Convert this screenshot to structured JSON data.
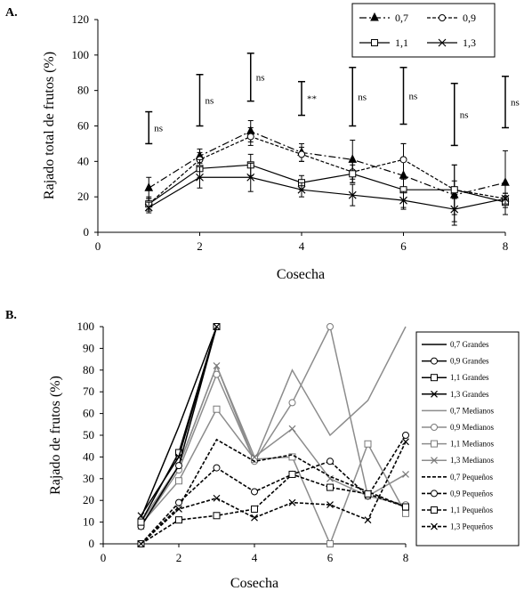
{
  "chart_data": [
    {
      "type": "line",
      "panel_label": "A.",
      "xlabel": "Cosecha",
      "ylabel": "Rajado total de frutos (%)",
      "xlim": [
        0,
        8
      ],
      "ylim": [
        0,
        120
      ],
      "x_ticks": [
        "0",
        "2",
        "4",
        "6",
        "8"
      ],
      "y_ticks": [
        "0",
        "20",
        "40",
        "60",
        "80",
        "100",
        "120"
      ],
      "legend_position": "top-right",
      "x": [
        1,
        2,
        3,
        4,
        5,
        6,
        7,
        8
      ],
      "series": [
        {
          "name": "0,7",
          "style": "dashdot",
          "marker": "triangle",
          "values": [
            25,
            43,
            57,
            45,
            41,
            32,
            21,
            28
          ],
          "err": [
            6,
            4,
            6,
            5,
            11,
            18,
            17,
            18
          ]
        },
        {
          "name": "0,9",
          "style": "dashed",
          "marker": "circle",
          "values": [
            16,
            41,
            54,
            44,
            34,
            41,
            24,
            19
          ],
          "err": [
            4,
            4,
            5,
            4,
            6,
            9,
            5,
            3
          ]
        },
        {
          "name": "1,1",
          "style": "solid",
          "marker": "square",
          "values": [
            16,
            36,
            38,
            28,
            33,
            24,
            24,
            17
          ],
          "err": [
            3,
            5,
            6,
            4,
            5,
            6,
            14,
            3
          ]
        },
        {
          "name": "1,3",
          "style": "solid",
          "marker": "x",
          "values": [
            14,
            31,
            31,
            24,
            21,
            18,
            13,
            19
          ],
          "err": [
            3,
            6,
            8,
            4,
            6,
            5,
            7,
            3
          ]
        }
      ],
      "significance": [
        {
          "x": 1,
          "low": 50,
          "high": 68,
          "label": "ns"
        },
        {
          "x": 2,
          "low": 60,
          "high": 89,
          "label": "ns"
        },
        {
          "x": 3,
          "low": 74,
          "high": 101,
          "label": "ns"
        },
        {
          "x": 4,
          "low": 66,
          "high": 85,
          "label": "**"
        },
        {
          "x": 5,
          "low": 60,
          "high": 93,
          "label": "ns"
        },
        {
          "x": 6,
          "low": 61,
          "high": 93,
          "label": "ns"
        },
        {
          "x": 7,
          "low": 49,
          "high": 84,
          "label": "ns"
        },
        {
          "x": 8,
          "low": 59,
          "high": 88,
          "label": "ns"
        }
      ]
    },
    {
      "type": "line",
      "panel_label": "B.",
      "xlabel": "Cosecha",
      "ylabel": "Rajado de frutos (%)",
      "xlim": [
        0,
        8
      ],
      "ylim": [
        0,
        100
      ],
      "x_ticks": [
        "0",
        "2",
        "4",
        "6",
        "8"
      ],
      "y_ticks": [
        "0",
        "10",
        "20",
        "30",
        "40",
        "50",
        "60",
        "70",
        "80",
        "90",
        "100"
      ],
      "legend_position": "right",
      "series": [
        {
          "name": "0,7 Grandes",
          "group": "grandes",
          "marker": "none",
          "x": [
            1,
            2,
            3
          ],
          "values": [
            12,
            54,
            100
          ]
        },
        {
          "name": "0,9 Grandes",
          "group": "grandes",
          "marker": "circle",
          "x": [
            1,
            2,
            3
          ],
          "values": [
            8,
            36,
            100
          ]
        },
        {
          "name": "1,1 Grandes",
          "group": "grandes",
          "marker": "square",
          "x": [
            1,
            2,
            3
          ],
          "values": [
            10,
            42,
            100
          ]
        },
        {
          "name": "1,3 Grandes",
          "group": "grandes",
          "marker": "x",
          "x": [
            1,
            2,
            3
          ],
          "values": [
            13,
            40,
            100
          ]
        },
        {
          "name": "0,7 Medianos",
          "group": "medianos",
          "marker": "none",
          "x": [
            1,
            2,
            3,
            4,
            5,
            6,
            7,
            8
          ],
          "values": [
            10,
            36,
            82,
            38,
            80,
            50,
            66,
            100
          ]
        },
        {
          "name": "0,9 Medianos",
          "group": "medianos",
          "marker": "circle",
          "x": [
            1,
            2,
            3,
            4,
            5,
            6,
            7,
            8
          ],
          "values": [
            8,
            34,
            78,
            38,
            65,
            100,
            22,
            18
          ]
        },
        {
          "name": "1,1 Medianos",
          "group": "medianos",
          "marker": "square",
          "x": [
            1,
            2,
            3,
            4,
            5,
            6,
            7,
            8
          ],
          "values": [
            9,
            29,
            62,
            39,
            40,
            0,
            46,
            14
          ]
        },
        {
          "name": "1,3 Medianos",
          "group": "medianos",
          "marker": "x",
          "x": [
            1,
            2,
            3,
            4,
            5,
            6,
            7,
            8
          ],
          "values": [
            8,
            36,
            82,
            40,
            53,
            30,
            22,
            32
          ]
        },
        {
          "name": "0,7 Pequeños",
          "group": "pequenos",
          "marker": "none",
          "x": [
            1,
            2,
            3,
            4,
            5,
            6,
            7,
            8
          ],
          "values": [
            0,
            17,
            48,
            38,
            41,
            31,
            24,
            17
          ]
        },
        {
          "name": "0,9 Pequeños",
          "group": "pequenos",
          "marker": "circle",
          "x": [
            1,
            2,
            3,
            4,
            5,
            6,
            7,
            8
          ],
          "values": [
            0,
            19,
            35,
            24,
            32,
            38,
            22,
            50
          ]
        },
        {
          "name": "1,1 Pequeños",
          "group": "pequenos",
          "marker": "square",
          "x": [
            1,
            2,
            3,
            4,
            5,
            6,
            7,
            8
          ],
          "values": [
            0,
            11,
            13,
            16,
            32,
            26,
            23,
            17
          ]
        },
        {
          "name": "1,3 Pequeños",
          "group": "pequenos",
          "marker": "x",
          "x": [
            1,
            2,
            3,
            4,
            5,
            6,
            7,
            8
          ],
          "values": [
            0,
            16,
            21,
            12,
            19,
            18,
            11,
            47
          ]
        }
      ]
    }
  ]
}
